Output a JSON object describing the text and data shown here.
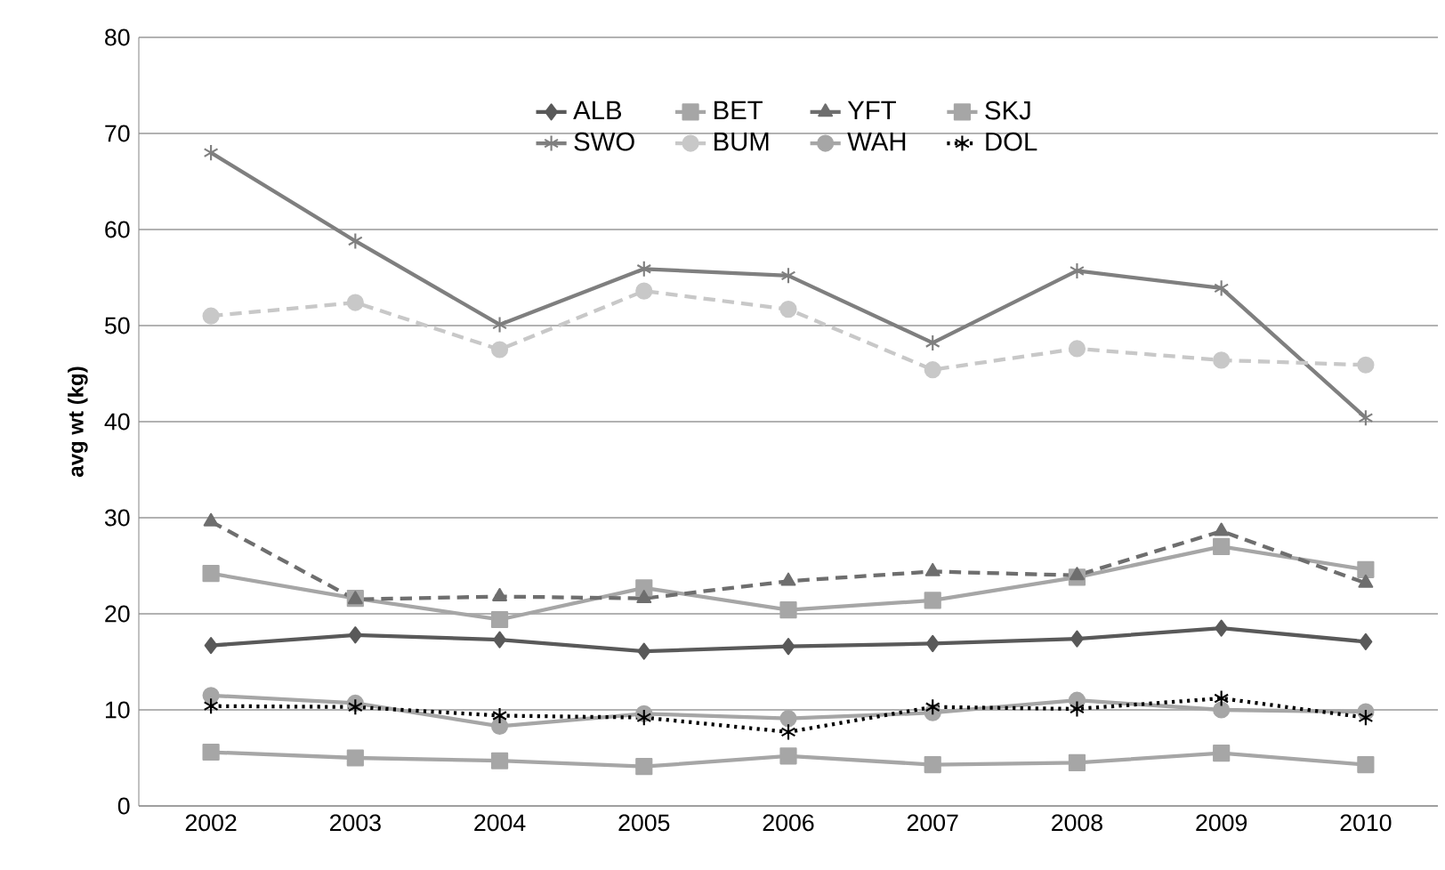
{
  "chart_data": {
    "type": "line",
    "ylabel": "avg wt (kg)",
    "categories": [
      "2002",
      "2003",
      "2004",
      "2005",
      "2006",
      "2007",
      "2008",
      "2009",
      "2010"
    ],
    "ylim": [
      0,
      80
    ],
    "yticks": [
      0,
      10,
      20,
      30,
      40,
      50,
      60,
      70,
      80
    ],
    "grid": "y",
    "legend": "top",
    "series": [
      {
        "name": "ALB",
        "color": "#595959",
        "marker": "diamond",
        "line_style": "solid",
        "values": [
          16.7,
          17.8,
          17.3,
          16.1,
          16.6,
          16.9,
          17.4,
          18.5,
          17.1
        ]
      },
      {
        "name": "BET",
        "color": "#a6a6a6",
        "marker": "square",
        "line_style": "solid",
        "values": [
          24.2,
          21.6,
          19.4,
          22.7,
          20.4,
          21.4,
          23.8,
          27.0,
          24.6
        ]
      },
      {
        "name": "YFT",
        "color": "#6e6e6e",
        "marker": "triangle",
        "line_style": "dashed",
        "values": [
          29.6,
          21.5,
          21.8,
          21.6,
          23.4,
          24.4,
          24.0,
          28.6,
          23.2
        ]
      },
      {
        "name": "SKJ",
        "color": "#a6a6a6",
        "marker": "square",
        "line_style": "solid",
        "values": [
          5.6,
          5.0,
          4.7,
          4.1,
          5.2,
          4.3,
          4.5,
          5.5,
          4.3
        ]
      },
      {
        "name": "SWO",
        "color": "#7f7f7f",
        "marker": "cross",
        "line_style": "solid",
        "values": [
          68,
          58.8,
          50.1,
          55.9,
          55.2,
          48.2,
          55.7,
          53.9,
          40.4
        ]
      },
      {
        "name": "BUM",
        "color": "#c8c8c8",
        "marker": "circle",
        "line_style": "dashed",
        "values": [
          51,
          52.4,
          47.5,
          53.6,
          51.7,
          45.4,
          47.6,
          46.4,
          45.9
        ]
      },
      {
        "name": "WAH",
        "color": "#a6a6a6",
        "marker": "circle",
        "line_style": "solid",
        "values": [
          11.5,
          10.7,
          8.3,
          9.6,
          9.1,
          9.7,
          11.0,
          10.0,
          9.8
        ]
      },
      {
        "name": "DOL",
        "color": "#000000",
        "marker": "cross",
        "line_style": "dotted",
        "values": [
          10.4,
          10.3,
          9.4,
          9.2,
          7.7,
          10.3,
          10.1,
          11.2,
          9.2
        ]
      }
    ]
  }
}
